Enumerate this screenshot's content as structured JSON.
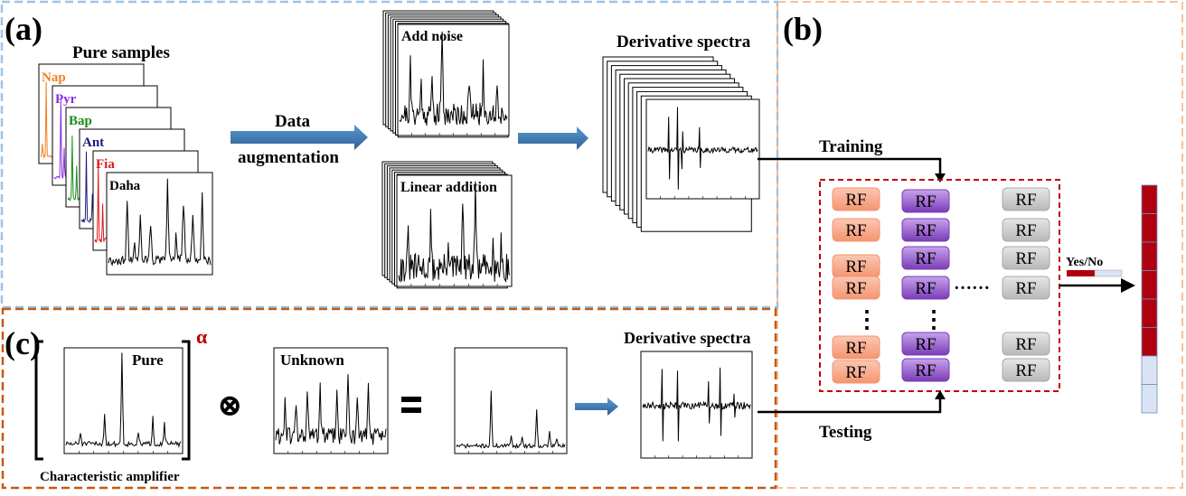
{
  "panels": {
    "a": "(a)",
    "b": "(b)",
    "c": "(c)"
  },
  "section_a": {
    "pure_samples_title": "Pure samples",
    "samples": [
      {
        "label": "Nap",
        "color": "#f08020"
      },
      {
        "label": "Pyr",
        "color": "#8a2be2"
      },
      {
        "label": "Bap",
        "color": "#1a8a1a"
      },
      {
        "label": "Ant",
        "color": "#1a1a80"
      },
      {
        "label": "Fia",
        "color": "#e01818"
      },
      {
        "label": "Daha",
        "color": "#000000"
      }
    ],
    "arrow_label_line1": "Data",
    "arrow_label_line2": "augmentation",
    "add_noise_label": "Add noise",
    "linear_addition_label": "Linear addition",
    "derivative_title": "Derivative spectra"
  },
  "section_b": {
    "training_label": "Training",
    "testing_label": "Testing",
    "rf_label": "RF",
    "dots_vertical": "⋮",
    "dots_horizontal": "……",
    "yes_no_label": "Yes/No"
  },
  "section_c": {
    "pure_label": "Pure",
    "alpha_symbol": "α",
    "amplifier_label": "Characteristic amplifier",
    "unknown_label": "Unknown",
    "otimes_symbol": "⊗",
    "derivative_title": "Derivative spectra"
  },
  "colors": {
    "blue_frame": "#9cc3e6",
    "orange_frame": "#c55a11",
    "peach_frame": "#f4b183",
    "red_frame": "#c00000",
    "arrow_blue": "#2e75b6",
    "rf_orange": "#f8b09a",
    "rf_purple": "#8b4fc4",
    "rf_gray": "#c8c8c8",
    "bar_red": "#b00010",
    "bar_light": "#dae3f3"
  }
}
